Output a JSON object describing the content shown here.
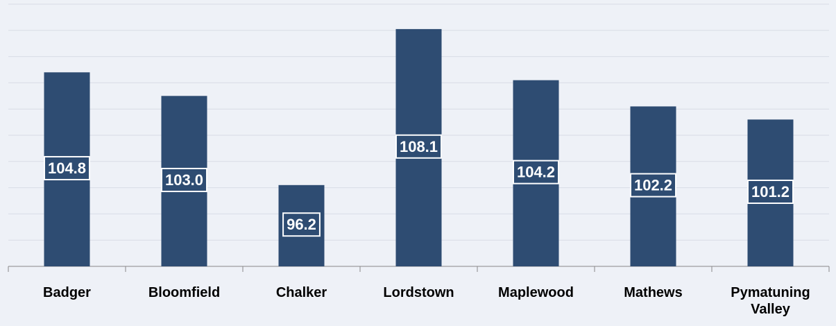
{
  "chart_data": {
    "type": "bar",
    "categories": [
      "Badger",
      "Bloomfield",
      "Chalker",
      "Lordstown",
      "Maplewood",
      "Mathews",
      "Pymatuning Valley"
    ],
    "values": [
      104.8,
      103.0,
      96.2,
      108.1,
      104.2,
      102.2,
      101.2
    ],
    "value_labels": [
      "104.8",
      "103.0",
      "96.2",
      "108.1",
      "104.2",
      "102.2",
      "101.2"
    ],
    "color": "#2e4c72",
    "ylim": [
      90,
      110
    ],
    "yticks": [
      90,
      92,
      94,
      96,
      98,
      100,
      102,
      104,
      106,
      108,
      110
    ],
    "grid": true
  }
}
